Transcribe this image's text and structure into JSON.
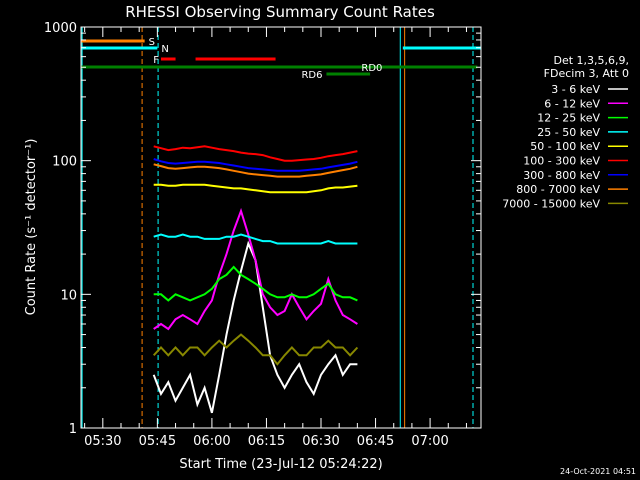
{
  "chart_data": {
    "type": "line",
    "title": "RHESSI Observing Summary Count Rates",
    "xlabel": "Start Time (23-Jul-12 05:24:22)",
    "ylabel": "Count Rate (s⁻¹ detector⁻¹)",
    "yscale": "log",
    "ylim": [
      1,
      1000
    ],
    "xlim_min": [
      324,
      434
    ],
    "y_ticks": [
      {
        "value": 1,
        "label": "1"
      },
      {
        "value": 10,
        "label": "10"
      },
      {
        "value": 100,
        "label": "100"
      },
      {
        "value": 1000,
        "label": "1000"
      }
    ],
    "x_ticks": [
      {
        "min": 330,
        "label": "05:30"
      },
      {
        "min": 345,
        "label": "05:45"
      },
      {
        "min": 360,
        "label": "06:00"
      },
      {
        "min": 375,
        "label": "06:15"
      },
      {
        "min": 390,
        "label": "06:30"
      },
      {
        "min": 405,
        "label": "06:45"
      },
      {
        "min": 420,
        "label": "07:00"
      }
    ],
    "legend_header": [
      "Det 1,3,5,6,9,",
      "FDecim 3, Att 0"
    ],
    "series": [
      {
        "name": "3 - 6 keV",
        "color": "#ffffff",
        "x": [
          344,
          346,
          348,
          350,
          352,
          354,
          356,
          358,
          360,
          362,
          364,
          366,
          368,
          370,
          372,
          374,
          376,
          378,
          380,
          382,
          384,
          386,
          388,
          390,
          392,
          394,
          396,
          398,
          400
        ],
        "y": [
          2.5,
          1.8,
          2.2,
          1.6,
          2.0,
          2.5,
          1.5,
          2.0,
          1.3,
          2.5,
          5.0,
          9.0,
          15,
          24,
          18,
          8.0,
          3.5,
          2.5,
          2.0,
          2.5,
          3.0,
          2.2,
          1.8,
          2.5,
          3.0,
          3.5,
          2.5,
          3.0,
          3.0
        ]
      },
      {
        "name": "6 - 12 keV",
        "color": "#ff00ff",
        "x": [
          344,
          346,
          348,
          350,
          352,
          354,
          356,
          358,
          360,
          362,
          364,
          366,
          368,
          370,
          372,
          374,
          376,
          378,
          380,
          382,
          384,
          386,
          388,
          390,
          392,
          394,
          396,
          398,
          400
        ],
        "y": [
          5.5,
          6.0,
          5.5,
          6.5,
          7.0,
          6.5,
          6.0,
          7.5,
          9.0,
          14,
          20,
          30,
          42,
          28,
          18,
          10,
          8.0,
          7.0,
          7.5,
          10,
          8.0,
          6.5,
          7.5,
          8.5,
          13,
          9.0,
          7.0,
          6.5,
          6.0
        ]
      },
      {
        "name": "12 - 25 keV",
        "color": "#00ff00",
        "x": [
          344,
          346,
          348,
          350,
          352,
          354,
          356,
          358,
          360,
          362,
          364,
          366,
          368,
          370,
          372,
          374,
          376,
          378,
          380,
          382,
          384,
          386,
          388,
          390,
          392,
          394,
          396,
          398,
          400
        ],
        "y": [
          10,
          10,
          9.0,
          10,
          9.5,
          9.0,
          9.5,
          10,
          11,
          13,
          14,
          16,
          14,
          13,
          12,
          11,
          10,
          9.5,
          9.5,
          10,
          9.5,
          9.5,
          10,
          11,
          12,
          10,
          9.5,
          9.5,
          9.0
        ]
      },
      {
        "name": "25 - 50 keV",
        "color": "#00ffff",
        "x": [
          344,
          346,
          348,
          350,
          352,
          354,
          356,
          358,
          360,
          362,
          364,
          366,
          368,
          370,
          372,
          374,
          376,
          378,
          380,
          382,
          384,
          386,
          388,
          390,
          392,
          394,
          396,
          398,
          400
        ],
        "y": [
          27,
          28,
          27,
          27,
          28,
          27,
          27,
          26,
          26,
          26,
          27,
          27,
          28,
          27,
          26,
          25,
          25,
          24,
          24,
          24,
          24,
          24,
          24,
          24,
          25,
          24,
          24,
          24,
          24
        ]
      },
      {
        "name": "50 - 100 keV",
        "color": "#ffff00",
        "x": [
          344,
          346,
          348,
          350,
          352,
          354,
          356,
          358,
          360,
          362,
          364,
          366,
          368,
          370,
          372,
          374,
          376,
          378,
          380,
          382,
          384,
          386,
          388,
          390,
          392,
          394,
          396,
          398,
          400
        ],
        "y": [
          66,
          66,
          65,
          65,
          66,
          66,
          66,
          66,
          65,
          64,
          63,
          62,
          62,
          61,
          60,
          59,
          58,
          58,
          58,
          58,
          58,
          58,
          59,
          60,
          62,
          63,
          63,
          64,
          65
        ]
      },
      {
        "name": "100 - 300 keV",
        "color": "#ff0000",
        "x": [
          344,
          346,
          348,
          350,
          352,
          354,
          356,
          358,
          360,
          362,
          364,
          366,
          368,
          370,
          372,
          374,
          376,
          378,
          380,
          382,
          384,
          386,
          388,
          390,
          392,
          394,
          396,
          398,
          400
        ],
        "y": [
          128,
          124,
          120,
          122,
          125,
          124,
          126,
          128,
          125,
          122,
          120,
          118,
          115,
          113,
          112,
          110,
          106,
          103,
          100,
          100,
          101,
          102,
          103,
          105,
          108,
          110,
          112,
          115,
          118
        ]
      },
      {
        "name": "300 - 800 keV",
        "color": "#0000ff",
        "x": [
          344,
          346,
          348,
          350,
          352,
          354,
          356,
          358,
          360,
          362,
          364,
          366,
          368,
          370,
          372,
          374,
          376,
          378,
          380,
          382,
          384,
          386,
          388,
          390,
          392,
          394,
          396,
          398,
          400
        ],
        "y": [
          103,
          99,
          96,
          95,
          96,
          97,
          98,
          98,
          97,
          96,
          94,
          92,
          90,
          88,
          87,
          86,
          85,
          84,
          84,
          84,
          84,
          85,
          86,
          87,
          89,
          91,
          93,
          95,
          98
        ]
      },
      {
        "name": "800 - 7000 keV",
        "color": "#ff8000",
        "x": [
          344,
          346,
          348,
          350,
          352,
          354,
          356,
          358,
          360,
          362,
          364,
          366,
          368,
          370,
          372,
          374,
          376,
          378,
          380,
          382,
          384,
          386,
          388,
          390,
          392,
          394,
          396,
          398,
          400
        ],
        "y": [
          94,
          91,
          88,
          87,
          88,
          89,
          90,
          90,
          89,
          88,
          86,
          84,
          82,
          80,
          79,
          78,
          77,
          76,
          76,
          76,
          76,
          77,
          78,
          79,
          81,
          83,
          85,
          87,
          90
        ]
      },
      {
        "name": "7000 - 15000 keV",
        "color": "#888800",
        "x": [
          344,
          346,
          348,
          350,
          352,
          354,
          356,
          358,
          360,
          362,
          364,
          366,
          368,
          370,
          372,
          374,
          376,
          378,
          380,
          382,
          384,
          386,
          388,
          390,
          392,
          394,
          396,
          398,
          400
        ],
        "y": [
          3.5,
          4.0,
          3.5,
          4.0,
          3.5,
          4.0,
          4.0,
          3.5,
          4.0,
          4.5,
          4.0,
          4.5,
          5.0,
          4.5,
          4.0,
          3.5,
          3.5,
          3.0,
          3.5,
          4.0,
          3.5,
          3.5,
          4.0,
          4.0,
          4.5,
          4.0,
          4.0,
          3.5,
          4.0
        ]
      }
    ],
    "annotations": {
      "flags": [
        {
          "label": "S",
          "color": "#ff8000",
          "x_start": 324,
          "x_end": 341.5,
          "level": "top"
        },
        {
          "label": "N",
          "color": "#00ffff",
          "x_start": 324,
          "x_end": 345,
          "level": "second"
        },
        {
          "label": "N",
          "color": "#00ffff",
          "x_start": 412.5,
          "x_end": 434,
          "level": "second",
          "show_label": false
        },
        {
          "label": "F",
          "color": "#ff0000",
          "x_start": 346,
          "x_end": 350,
          "level": "third"
        },
        {
          "label": "F",
          "color": "#ff0000",
          "x_start": 355.5,
          "x_end": 377.5,
          "level": "third",
          "show_label": false
        },
        {
          "label": "RD0",
          "color": "#008000",
          "x_start": 324,
          "x_end": 433,
          "level": "fourth"
        },
        {
          "label": "RD6",
          "color": "#008000",
          "x_start": 391.5,
          "x_end": 403.5,
          "level": "fifth"
        }
      ],
      "vertical_lines": [
        {
          "x": 324.3,
          "color": "#00ffff",
          "style": "solid"
        },
        {
          "x": 340.8,
          "color": "#ff8000",
          "style": "dashed"
        },
        {
          "x": 345.2,
          "color": "#00ffff",
          "style": "dashed"
        },
        {
          "x": 411.8,
          "color": "#00ffff",
          "style": "solid"
        },
        {
          "x": 413.0,
          "color": "#ff8000",
          "style": "solid"
        },
        {
          "x": 431.8,
          "color": "#00ffff",
          "style": "dashed"
        }
      ]
    },
    "footer_date": "24-Oct-2021 04:51",
    "legend_placement": "right",
    "grid": false
  }
}
